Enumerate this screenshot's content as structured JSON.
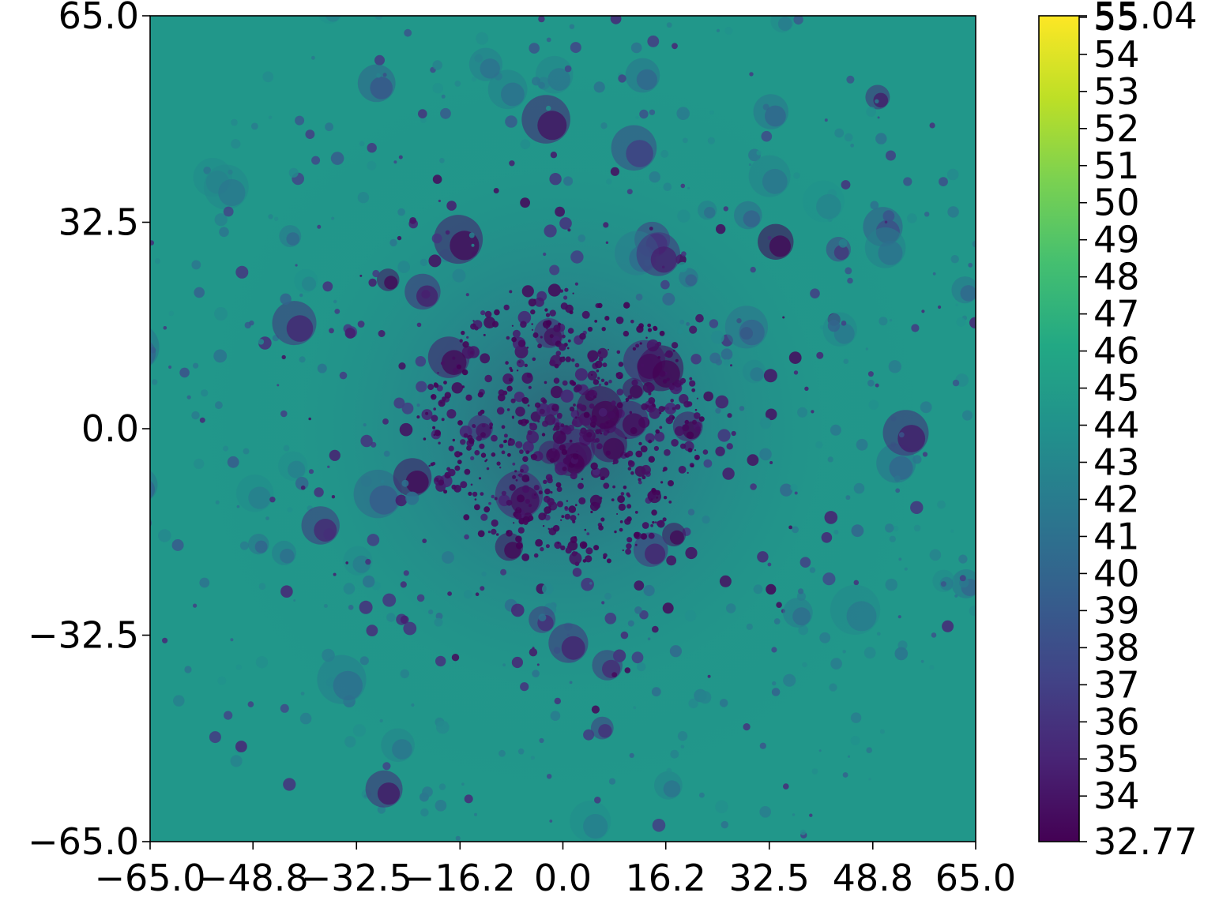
{
  "chart_data": {
    "type": "heatmap",
    "title": "",
    "xlabel": "",
    "ylabel": "",
    "xlim": [
      -65.0,
      65.0
    ],
    "ylim": [
      -65.0,
      65.0
    ],
    "x_ticks": [
      -65.0,
      -48.8,
      -32.5,
      -16.2,
      0.0,
      16.2,
      32.5,
      48.8,
      65.0
    ],
    "x_tick_labels": [
      "−65.0",
      "−48.8",
      "−32.5",
      "−16.2",
      "0.0",
      "16.2",
      "32.5",
      "48.8",
      "65.0"
    ],
    "y_ticks": [
      65.0,
      32.5,
      0.0,
      -32.5,
      -65.0
    ],
    "y_tick_labels": [
      "65.0",
      "32.5",
      "0.0",
      "−32.5",
      "−65.0"
    ],
    "colormap": "viridis",
    "colorbar": {
      "min": 32.77,
      "max": 55.04,
      "ticks": [
        32.77,
        34,
        35,
        36,
        37,
        38,
        39,
        40,
        41,
        42,
        43,
        44,
        45,
        46,
        47,
        48,
        49,
        50,
        51,
        52,
        53,
        54,
        55,
        55.04
      ],
      "tick_labels": [
        "32.77",
        "34",
        "35",
        "36",
        "37",
        "38",
        "39",
        "40",
        "41",
        "42",
        "43",
        "44",
        "45",
        "46",
        "47",
        "48",
        "49",
        "50",
        "51",
        "52",
        "53",
        "54",
        "55",
        "55.04"
      ]
    },
    "background_value": 44.5,
    "grid": false
  }
}
